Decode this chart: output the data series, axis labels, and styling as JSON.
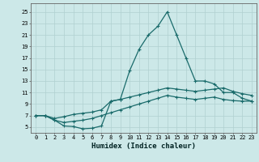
{
  "xlabel": "Humidex (Indice chaleur)",
  "bg_color": "#cce8e8",
  "line_color": "#1a6b6b",
  "grid_color": "#b0d0d0",
  "xlim": [
    -0.5,
    23.5
  ],
  "ylim": [
    4.0,
    26.5
  ],
  "xticks": [
    0,
    1,
    2,
    3,
    4,
    5,
    6,
    7,
    8,
    9,
    10,
    11,
    12,
    13,
    14,
    15,
    16,
    17,
    18,
    19,
    20,
    21,
    22,
    23
  ],
  "yticks": [
    5,
    7,
    9,
    11,
    13,
    15,
    17,
    19,
    21,
    23,
    25
  ],
  "line1_x": [
    0,
    1,
    2,
    3,
    4,
    5,
    6,
    7,
    8,
    9,
    10,
    11,
    12,
    13,
    14,
    15,
    16,
    17,
    18,
    19,
    20,
    21,
    22,
    23
  ],
  "line1_y": [
    7.0,
    7.0,
    6.2,
    5.2,
    5.1,
    4.7,
    4.8,
    5.2,
    9.5,
    9.8,
    14.8,
    18.5,
    21.0,
    22.5,
    25.0,
    21.0,
    17.0,
    13.0,
    13.0,
    12.5,
    11.0,
    11.0,
    10.0,
    9.5
  ],
  "line2_x": [
    0,
    1,
    2,
    3,
    4,
    5,
    6,
    7,
    8,
    9,
    10,
    11,
    12,
    13,
    14,
    15,
    16,
    17,
    18,
    19,
    20,
    21,
    22,
    23
  ],
  "line2_y": [
    7.0,
    7.0,
    6.5,
    6.8,
    7.2,
    7.4,
    7.6,
    8.0,
    9.5,
    9.8,
    10.2,
    10.6,
    11.0,
    11.4,
    11.8,
    11.6,
    11.4,
    11.2,
    11.4,
    11.6,
    11.8,
    11.2,
    10.8,
    10.5
  ],
  "line3_x": [
    0,
    1,
    2,
    3,
    4,
    5,
    6,
    7,
    8,
    9,
    10,
    11,
    12,
    13,
    14,
    15,
    16,
    17,
    18,
    19,
    20,
    21,
    22,
    23
  ],
  "line3_y": [
    7.0,
    7.0,
    6.2,
    5.8,
    6.0,
    6.2,
    6.5,
    7.0,
    7.5,
    8.0,
    8.5,
    9.0,
    9.5,
    10.0,
    10.5,
    10.2,
    10.0,
    9.8,
    10.0,
    10.2,
    9.8,
    9.6,
    9.5,
    9.5
  ]
}
